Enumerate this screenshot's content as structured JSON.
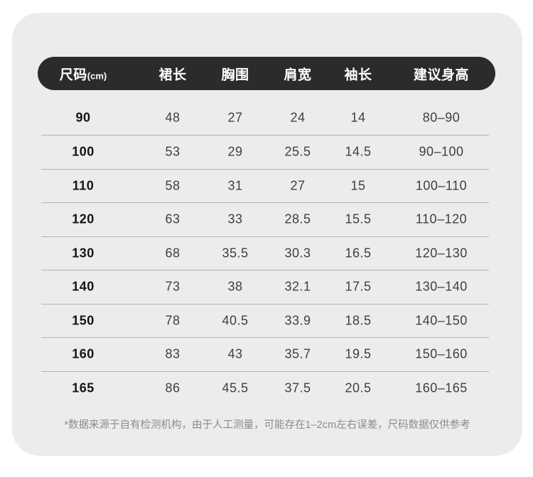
{
  "panel": {
    "header": {
      "size_label": "尺码",
      "size_unit": "(cm)",
      "columns": [
        "裙长",
        "胸围",
        "肩宽",
        "袖长",
        "建议身高"
      ]
    },
    "rows": [
      {
        "size": "90",
        "skirt_length": "48",
        "bust": "27",
        "shoulder_width": "24",
        "sleeve_length": "14",
        "suggested_height": "80–90"
      },
      {
        "size": "100",
        "skirt_length": "53",
        "bust": "29",
        "shoulder_width": "25.5",
        "sleeve_length": "14.5",
        "suggested_height": "90–100"
      },
      {
        "size": "110",
        "skirt_length": "58",
        "bust": "31",
        "shoulder_width": "27",
        "sleeve_length": "15",
        "suggested_height": "100–110"
      },
      {
        "size": "120",
        "skirt_length": "63",
        "bust": "33",
        "shoulder_width": "28.5",
        "sleeve_length": "15.5",
        "suggested_height": "110–120"
      },
      {
        "size": "130",
        "skirt_length": "68",
        "bust": "35.5",
        "shoulder_width": "30.3",
        "sleeve_length": "16.5",
        "suggested_height": "120–130"
      },
      {
        "size": "140",
        "skirt_length": "73",
        "bust": "38",
        "shoulder_width": "32.1",
        "sleeve_length": "17.5",
        "suggested_height": "130–140"
      },
      {
        "size": "150",
        "skirt_length": "78",
        "bust": "40.5",
        "shoulder_width": "33.9",
        "sleeve_length": "18.5",
        "suggested_height": "140–150"
      },
      {
        "size": "160",
        "skirt_length": "83",
        "bust": "43",
        "shoulder_width": "35.7",
        "sleeve_length": "19.5",
        "suggested_height": "150–160"
      },
      {
        "size": "165",
        "skirt_length": "86",
        "bust": "45.5",
        "shoulder_width": "37.5",
        "sleeve_length": "20.5",
        "suggested_height": "160–165"
      }
    ],
    "footnote": "*数据来源于自有检测机构，由于人工测量，可能存在1–2cm左右误差，尺码数据仅供参考"
  },
  "colors": {
    "page_background": "#ffffff",
    "panel_background": "#ececec",
    "header_background": "#2b2b2b",
    "header_text": "#ffffff",
    "size_text": "#141414",
    "value_text": "#3f3f3f",
    "divider": "#b3b3b3",
    "footnote_text": "#8c8c8c"
  }
}
